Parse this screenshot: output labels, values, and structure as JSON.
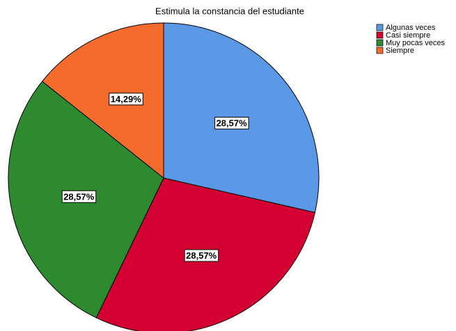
{
  "chart_data": {
    "type": "pie",
    "title": "Estimula la constancia del estudiante",
    "categories": [
      "Algunas veces",
      "Casi siempre",
      "Muy pocas veces",
      "Siempre"
    ],
    "values": [
      28.57,
      28.57,
      28.57,
      14.29
    ],
    "value_labels": [
      "28,57%",
      "28,57%",
      "28,57%",
      "14,29%"
    ],
    "colors": [
      "#5a98e5",
      "#d30032",
      "#2e8a2e",
      "#f46b2c"
    ],
    "legend": "top-right"
  }
}
